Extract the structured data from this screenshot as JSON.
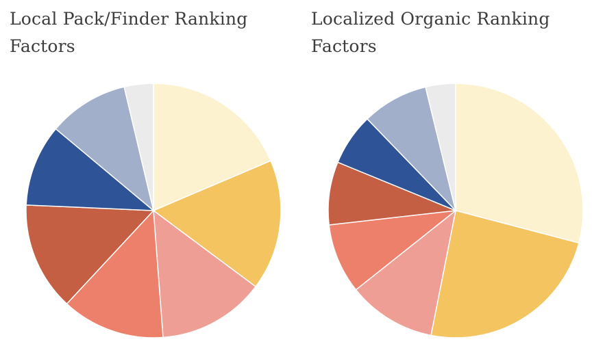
{
  "chart_data": [
    {
      "type": "pie",
      "title": "Local Pack/Finder Ranking Factors",
      "colors": [
        "#FDF2CF",
        "#F4C461",
        "#EF9E95",
        "#ED806B",
        "#C45F44",
        "#2E5396",
        "#A2AFCA",
        "#EBEBEB"
      ],
      "values": [
        18.6,
        16.6,
        13.6,
        13.1,
        13.8,
        10.4,
        10.2,
        3.7
      ]
    },
    {
      "type": "pie",
      "title": "Localized Organic Ranking Factors",
      "colors": [
        "#FDF2CF",
        "#F4C461",
        "#EF9E95",
        "#ED806B",
        "#C45F44",
        "#2E5396",
        "#A2AFCA",
        "#EBEBEB"
      ],
      "values": [
        29.1,
        24.0,
        11.2,
        8.9,
        8.0,
        6.6,
        8.4,
        3.8
      ]
    }
  ]
}
